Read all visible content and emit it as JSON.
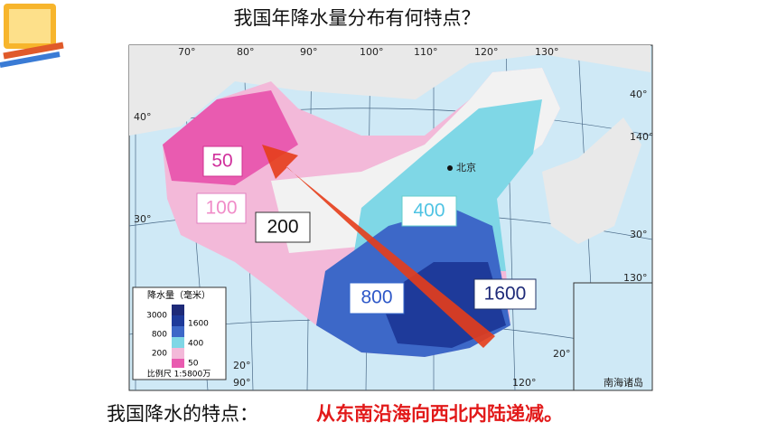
{
  "header": {
    "title": "我国年降水量分布有何特点？"
  },
  "map": {
    "longitudes": [
      "70°",
      "80°",
      "90°",
      "100°",
      "110°",
      "120°",
      "130°"
    ],
    "latitudes": [
      "40°",
      "30°",
      "20°"
    ],
    "edge_labels": [
      "140°",
      "40°",
      "30°",
      "20°",
      "130°",
      "90°",
      "120°"
    ],
    "city": "北京",
    "inset": "南海诸岛",
    "scale": "比例尺 1:5800万",
    "legend": {
      "title": "降水量（毫米）",
      "levels": [
        "3000",
        "1600",
        "800",
        "400",
        "200",
        "50"
      ]
    },
    "zone_labels": [
      "50",
      "100",
      "200",
      "400",
      "800",
      "1600"
    ]
  },
  "footer": {
    "lead": "我国降水的特点：",
    "answer": "从东南沿海向西北内陆递减。"
  }
}
